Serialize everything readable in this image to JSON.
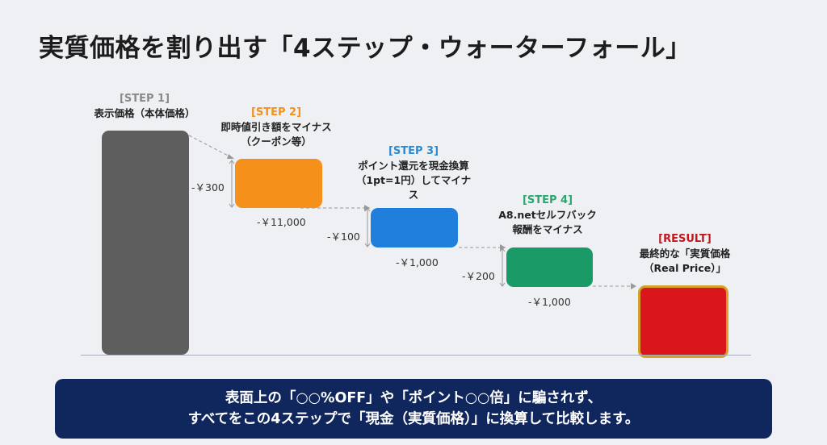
{
  "title": "実質価格を割り出す「4ステップ・ウォーターフォール」",
  "steps": [
    {
      "tag": "[STEP 1]",
      "lines": [
        "表示価格（本体価格）"
      ],
      "color": "#5e5e5e",
      "tag_color": "#8a8a8a"
    },
    {
      "tag": "[STEP 2]",
      "lines": [
        "即時値引き額をマイナス",
        "（クーポン等）"
      ],
      "color": "#f5901a",
      "tag_color": "#f5901a",
      "gap_label": "-￥300",
      "below_label": "-￥11,000"
    },
    {
      "tag": "[STEP 3]",
      "lines": [
        "ポイント還元を現金換算",
        "（1pt=1円）してマイナ",
        "ス"
      ],
      "color": "#1f7fdb",
      "tag_color": "#2a8ad6",
      "gap_label": "-￥100",
      "below_label": "-￥1,000"
    },
    {
      "tag": "[STEP 4]",
      "lines": [
        "A8.netセルフバック",
        "報酬をマイナス"
      ],
      "color": "#1a9a66",
      "tag_color": "#2aa66e",
      "gap_label": "-￥200",
      "below_label": "-￥1,000"
    },
    {
      "tag": "[RESULT]",
      "lines": [
        "最終的な「実質価格",
        "（Real Price）」"
      ],
      "color": "#d8161b",
      "tag_color": "#c0181c",
      "border_color": "#d4a028"
    }
  ],
  "banner": {
    "line1": "表面上の「○○%OFF」や「ポイント○○倍」に騙されず、",
    "line2": "すべてをこの4ステップで「現金（実質価格）」に換算して比較します。"
  }
}
